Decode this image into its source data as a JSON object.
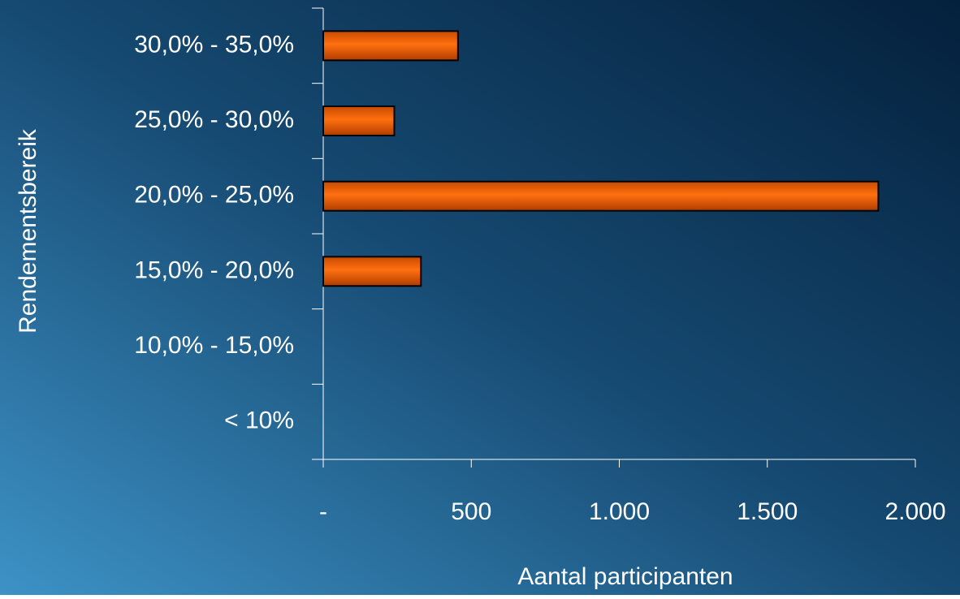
{
  "chart_data": {
    "type": "barh",
    "xlabel": "Aantal participanten",
    "ylabel": "Rendementsbereik",
    "categories": [
      "30,0% - 35,0%",
      "25,0% - 30,0%",
      "20,0% - 25,0%",
      "15,0% - 20,0%",
      "10,0% - 15,0%",
      "< 10%"
    ],
    "values": [
      455,
      240,
      1875,
      330,
      0,
      0
    ],
    "color": "#ff6a00",
    "xlim": [
      0,
      2000
    ],
    "xticks": [
      {
        "value": 0,
        "label": "-"
      },
      500,
      {
        "value": 1000,
        "label": "1.000"
      },
      {
        "value": 1500,
        "label": "1.500"
      },
      {
        "value": 2000,
        "label": "2.000"
      }
    ]
  }
}
